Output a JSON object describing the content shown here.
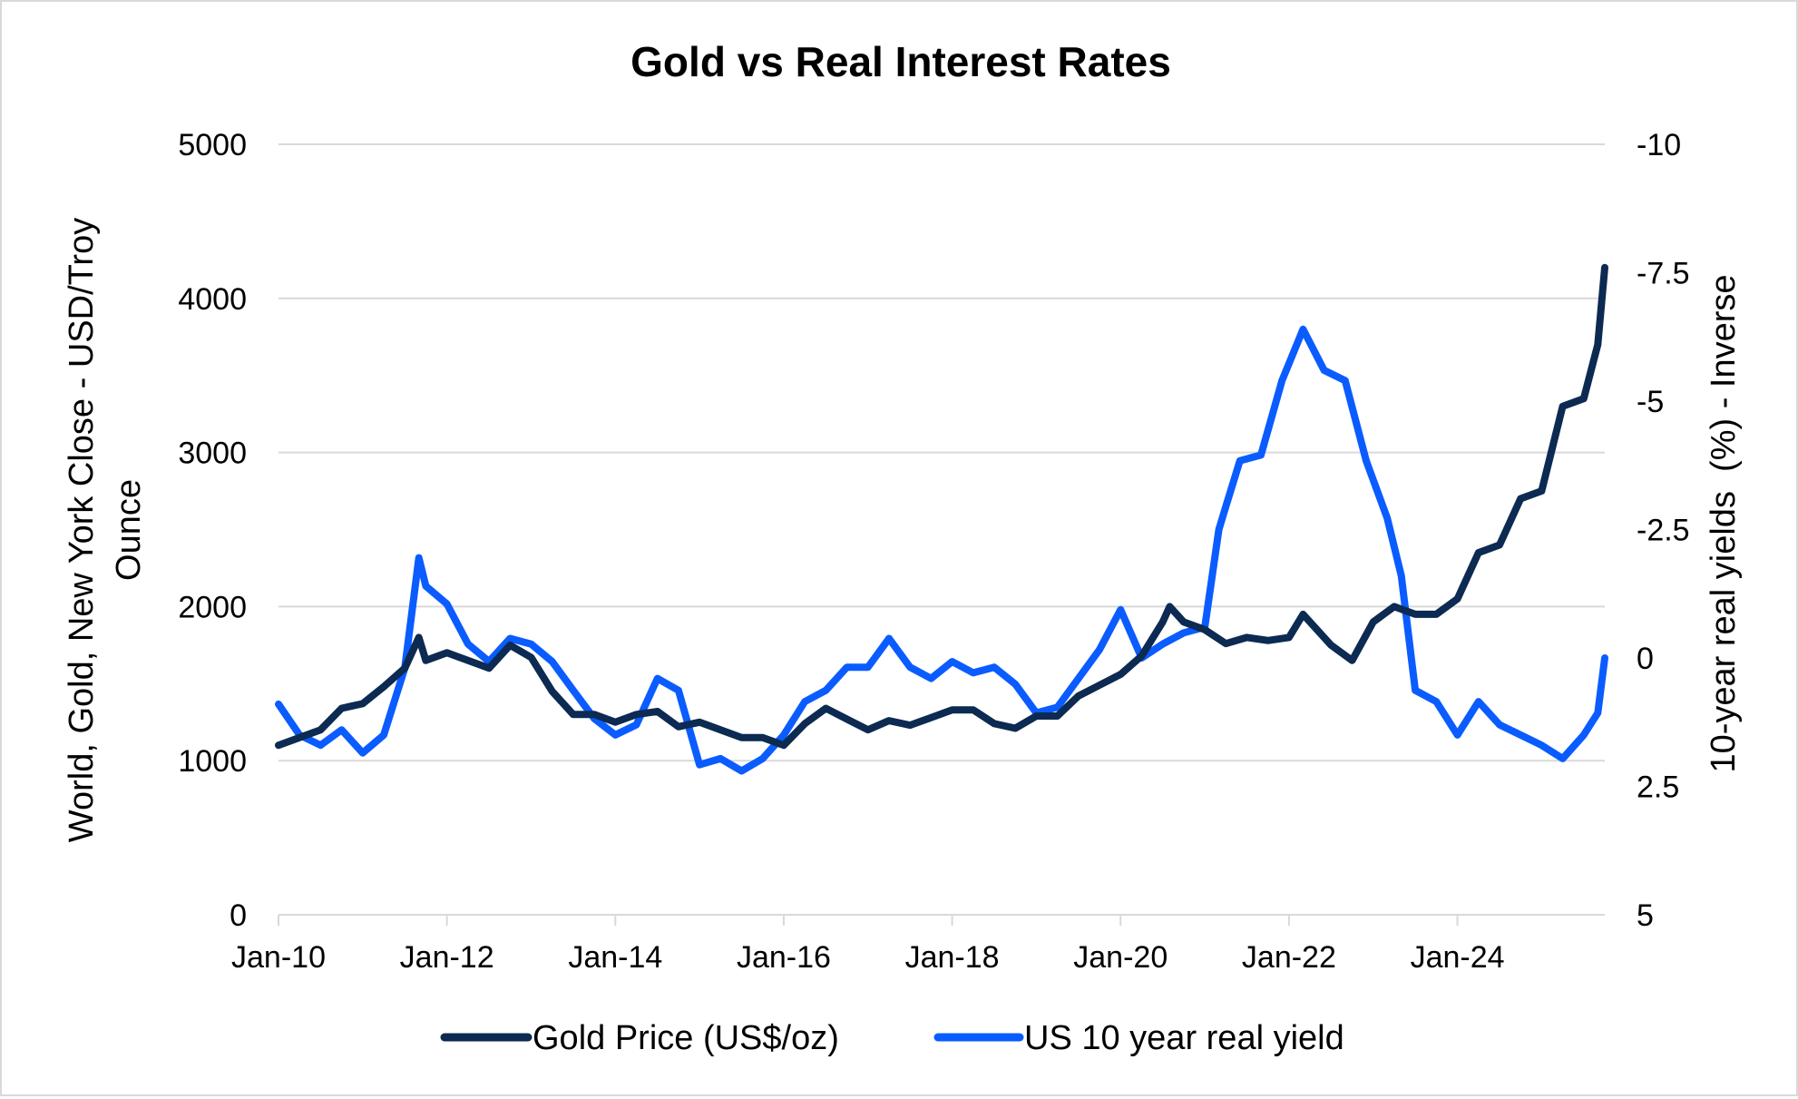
{
  "chart_data": {
    "type": "line",
    "title": "Gold vs Real Interest Rates",
    "ylabel_left": [
      "World, Gold, New York Close - USD/Troy",
      "Ounce"
    ],
    "ylabel_right": "10-year real yields  (%) - Inverse",
    "ylim_left": [
      0,
      5000
    ],
    "yticks_left": [
      "0",
      "1000",
      "2000",
      "3000",
      "4000",
      "5000"
    ],
    "ylim_right": [
      -10,
      5
    ],
    "right_axis_inverted": true,
    "yticks_right": [
      "-10",
      "-7.5",
      "-5",
      "-2.5",
      "0",
      "2.5",
      "5"
    ],
    "xticks": [
      "Jan-10",
      "Jan-12",
      "Jan-14",
      "Jan-16",
      "Jan-18",
      "Jan-20",
      "Jan-22",
      "Jan-24"
    ],
    "xrange": [
      "2010-01",
      "2025-10"
    ],
    "grid": true,
    "legend_position": "bottom",
    "series": [
      {
        "name": "Gold Price (US$/oz)",
        "axis": "left",
        "color": "#0c2a52",
        "x": [
          "2010-01",
          "2010-04",
          "2010-07",
          "2010-10",
          "2011-01",
          "2011-04",
          "2011-07",
          "2011-09",
          "2011-10",
          "2012-01",
          "2012-04",
          "2012-07",
          "2012-10",
          "2013-01",
          "2013-04",
          "2013-07",
          "2013-10",
          "2014-01",
          "2014-04",
          "2014-07",
          "2014-10",
          "2015-01",
          "2015-04",
          "2015-07",
          "2015-10",
          "2016-01",
          "2016-04",
          "2016-07",
          "2016-10",
          "2017-01",
          "2017-04",
          "2017-07",
          "2017-10",
          "2018-01",
          "2018-04",
          "2018-07",
          "2018-10",
          "2019-01",
          "2019-04",
          "2019-07",
          "2019-10",
          "2020-01",
          "2020-04",
          "2020-07",
          "2020-08",
          "2020-10",
          "2021-01",
          "2021-04",
          "2021-07",
          "2021-10",
          "2022-01",
          "2022-03",
          "2022-07",
          "2022-10",
          "2023-01",
          "2023-04",
          "2023-07",
          "2023-10",
          "2024-01",
          "2024-04",
          "2024-07",
          "2024-10",
          "2025-01",
          "2025-04",
          "2025-07",
          "2025-09",
          "2025-10"
        ],
        "values": [
          1100,
          1150,
          1200,
          1340,
          1370,
          1480,
          1600,
          1800,
          1650,
          1700,
          1650,
          1600,
          1750,
          1670,
          1450,
          1300,
          1300,
          1250,
          1300,
          1320,
          1220,
          1250,
          1200,
          1150,
          1150,
          1100,
          1240,
          1340,
          1270,
          1200,
          1260,
          1230,
          1280,
          1330,
          1330,
          1240,
          1210,
          1290,
          1290,
          1420,
          1490,
          1560,
          1680,
          1900,
          2000,
          1900,
          1850,
          1760,
          1800,
          1780,
          1800,
          1950,
          1750,
          1650,
          1900,
          2000,
          1950,
          1950,
          2050,
          2350,
          2400,
          2700,
          2750,
          3300,
          3350,
          3700,
          4200
        ]
      },
      {
        "name": "US 10 year real yield",
        "axis": "right",
        "color": "#0a5cff",
        "x": [
          "2010-01",
          "2010-04",
          "2010-07",
          "2010-10",
          "2011-01",
          "2011-04",
          "2011-07",
          "2011-09",
          "2011-10",
          "2012-01",
          "2012-04",
          "2012-07",
          "2012-10",
          "2013-01",
          "2013-04",
          "2013-07",
          "2013-10",
          "2014-01",
          "2014-04",
          "2014-07",
          "2014-10",
          "2015-01",
          "2015-04",
          "2015-07",
          "2015-10",
          "2016-01",
          "2016-04",
          "2016-07",
          "2016-10",
          "2017-01",
          "2017-04",
          "2017-07",
          "2017-10",
          "2018-01",
          "2018-04",
          "2018-07",
          "2018-10",
          "2019-01",
          "2019-04",
          "2019-07",
          "2019-10",
          "2020-01",
          "2020-04",
          "2020-07",
          "2020-10",
          "2021-01",
          "2021-03",
          "2021-04",
          "2021-06",
          "2021-09",
          "2021-12",
          "2022-03",
          "2022-06",
          "2022-09",
          "2022-12",
          "2023-03",
          "2023-05",
          "2023-07",
          "2023-10",
          "2024-01",
          "2024-04",
          "2024-07",
          "2024-10",
          "2025-01",
          "2025-04",
          "2025-07",
          "2025-09",
          "2025-10"
        ],
        "values": [
          0.9,
          1.5,
          1.7,
          1.4,
          1.85,
          1.5,
          0.2,
          -1.95,
          -1.4,
          -1.05,
          -0.27,
          0.07,
          -0.38,
          -0.27,
          0.07,
          0.63,
          1.18,
          1.5,
          1.3,
          0.4,
          0.63,
          2.08,
          1.96,
          2.2,
          1.96,
          1.5,
          0.85,
          0.63,
          0.18,
          0.18,
          -0.38,
          0.18,
          0.4,
          0.07,
          0.29,
          0.18,
          0.51,
          1.07,
          0.96,
          0.4,
          -0.16,
          -0.94,
          0,
          -0.27,
          -0.49,
          -0.6,
          -2.5,
          -2.95,
          -3.84,
          -3.95,
          -5.4,
          -6.4,
          -5.6,
          -5.4,
          -3.84,
          -2.72,
          -1.6,
          0.63,
          0.85,
          1.5,
          0.85,
          1.3,
          1.5,
          1.7,
          1.96,
          1.5,
          1.07,
          0
        ]
      }
    ]
  }
}
